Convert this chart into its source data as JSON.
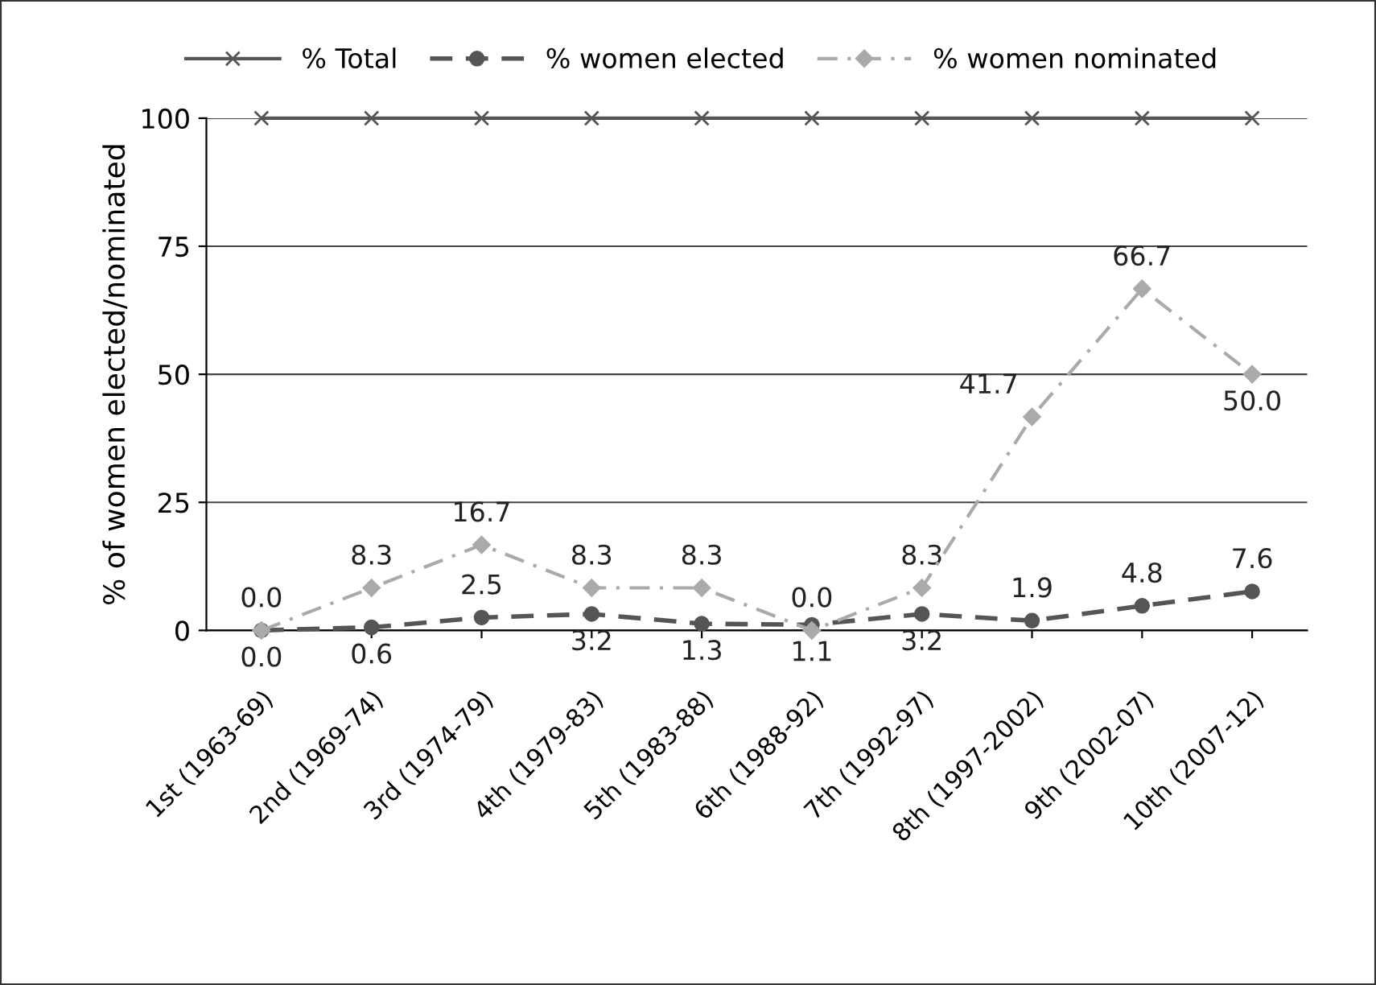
{
  "chart_data": {
    "type": "line",
    "ylabel": "% of women elected/nominated",
    "categories": [
      "1st (1963-69)",
      "2nd (1969-74)",
      "3rd (1974-79)",
      "4th (1979-83)",
      "5th (1983-88)",
      "6th (1988-92)",
      "7th (1992-97)",
      "8th (1997-2002)",
      "9th (2002-07)",
      "10th (2007-12)"
    ],
    "series": [
      {
        "name": "% Total",
        "color": "#555555",
        "marker": "cross",
        "line_style": "solid",
        "values": [
          100,
          100,
          100,
          100,
          100,
          100,
          100,
          100,
          100,
          100
        ]
      },
      {
        "name": "% women elected",
        "color": "#555555",
        "marker": "circle",
        "line_style": "dashed",
        "values": [
          0.0,
          0.6,
          2.5,
          3.2,
          1.3,
          1.1,
          3.2,
          1.9,
          4.8,
          7.6
        ],
        "value_labels": [
          "0.0",
          "0.6",
          "2.5",
          "3.2",
          "1.3",
          "1.1",
          "3.2",
          "1.9",
          "4.8",
          "7.6"
        ]
      },
      {
        "name": "% women nominated",
        "color": "#aaaaaa",
        "marker": "diamond",
        "line_style": "dotted",
        "values": [
          0.0,
          8.3,
          16.7,
          8.3,
          8.3,
          0.0,
          8.3,
          41.7,
          66.7,
          50.0
        ],
        "value_labels": [
          "0.0",
          "8.3",
          "16.7",
          "8.3",
          "8.3",
          "0.0",
          "8.3",
          "41.7",
          "66.7",
          "50.0"
        ]
      }
    ],
    "ylim": [
      0,
      100
    ],
    "yticks": [
      0,
      25,
      50,
      75,
      100
    ],
    "grid": "y",
    "legend": "top"
  }
}
